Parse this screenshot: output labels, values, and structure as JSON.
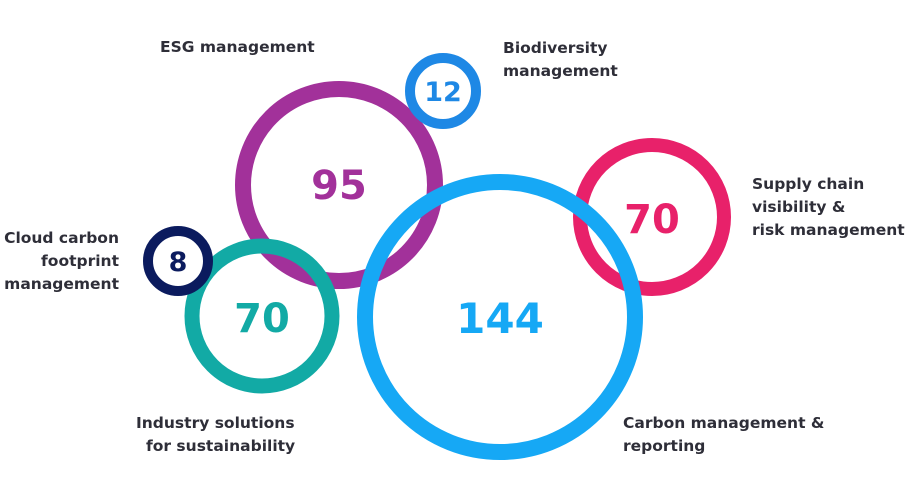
{
  "colors": {
    "esg": "#a2319a",
    "biodiversity": "#1e88e5",
    "supply_chain": "#e8216a",
    "carbon": "#16a8f5",
    "industry": "#12aaa5",
    "cloud": "#0b1b5e",
    "text": "#2e2e38"
  },
  "bubbles": {
    "esg": {
      "value": "95",
      "label": "ESG management"
    },
    "biodiversity": {
      "value": "12",
      "label": [
        "Biodiversity",
        "management"
      ]
    },
    "supply_chain": {
      "value": "70",
      "label": [
        "Supply chain",
        "visibility &",
        "risk management"
      ]
    },
    "carbon": {
      "value": "144",
      "label": [
        "Carbon management &",
        "reporting"
      ]
    },
    "industry": {
      "value": "70",
      "label": [
        "Industry solutions",
        "for sustainability"
      ]
    },
    "cloud": {
      "value": "8",
      "label": [
        "Cloud carbon",
        "footprint",
        "management"
      ]
    }
  }
}
